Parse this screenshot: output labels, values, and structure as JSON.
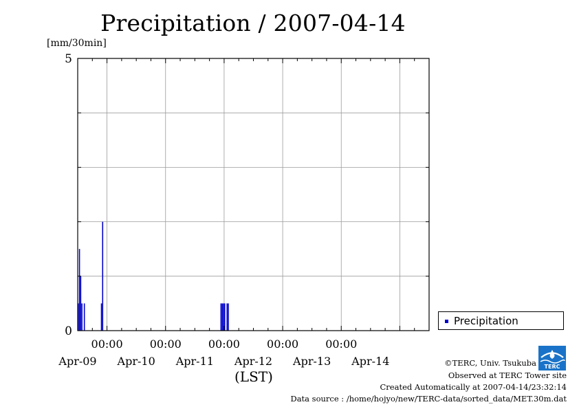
{
  "chart_data": {
    "type": "bar",
    "title": "Precipitation / 2007-04-14",
    "unit_label": "[mm/30min]",
    "xlabel": "(LST)",
    "ylim": [
      0,
      5
    ],
    "y_ticks": [
      "0",
      "5"
    ],
    "x_range": [
      "2007-04-08 12:00",
      "2007-04-14 12:00"
    ],
    "x_time_ticks": [
      "00:00",
      "00:00",
      "00:00",
      "00:00",
      "00:00"
    ],
    "x_date_labels": [
      "Apr-09",
      "Apr-10",
      "Apr-11",
      "Apr-12",
      "Apr-13",
      "Apr-14"
    ],
    "grid": true,
    "legend_position": "bottom-right, outside plot",
    "color": "#0000cc",
    "series": [
      {
        "name": "Precipitation",
        "values": [
          {
            "t": "2007-04-08 12:00",
            "v": 0.5
          },
          {
            "t": "2007-04-08 12:30",
            "v": 1.5
          },
          {
            "t": "2007-04-08 13:00",
            "v": 1.0
          },
          {
            "t": "2007-04-08 13:30",
            "v": 0.5
          },
          {
            "t": "2007-04-08 14:30",
            "v": 0.5
          },
          {
            "t": "2007-04-08 21:30",
            "v": 0.5
          },
          {
            "t": "2007-04-08 22:00",
            "v": 2.0
          },
          {
            "t": "2007-04-10 22:30",
            "v": 0.5
          },
          {
            "t": "2007-04-10 23:00",
            "v": 0.5
          },
          {
            "t": "2007-04-10 23:30",
            "v": 0.5
          },
          {
            "t": "2007-04-11 00:00",
            "v": 0.5
          },
          {
            "t": "2007-04-11 01:00",
            "v": 0.5
          },
          {
            "t": "2007-04-11 01:30",
            "v": 0.5
          }
        ]
      }
    ]
  },
  "footer": {
    "copyright": "©TERC, Univ. Tsukuba",
    "observed": "Observed at TERC Tower site",
    "created": "Created Automatically at 2007-04-14/23:32:14",
    "source": "Data source : /home/hojyo/new/TERC-data/sorted_data/MET.30m.dat"
  },
  "logo": {
    "text": "TERC"
  }
}
